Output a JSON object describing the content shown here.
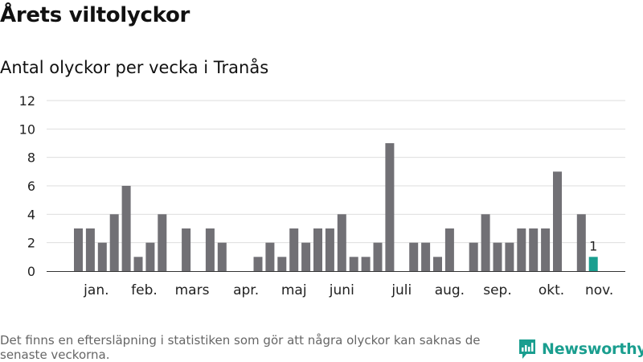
{
  "header": {
    "title": "Årets viltolyckor",
    "subtitle": "Antal olyckor per vecka i Tranås"
  },
  "footer": {
    "note": "Det finns en eftersläpning i statistiken som gör att några olyckor kan saknas de senaste veckorna.",
    "brand": "Newsworthy",
    "brand_color": "#1a9e8f"
  },
  "chart_data": {
    "type": "bar",
    "title": "Årets viltolyckor",
    "subtitle": "Antal olyckor per vecka i Tranås",
    "xlabel": "",
    "ylabel": "",
    "ylim": [
      0,
      12
    ],
    "yticks": [
      0,
      2,
      4,
      6,
      8,
      10,
      12
    ],
    "grid": true,
    "weeks": [
      1,
      2,
      3,
      4,
      5,
      6,
      7,
      8,
      9,
      10,
      11,
      12,
      13,
      14,
      15,
      16,
      17,
      18,
      19,
      20,
      21,
      22,
      23,
      24,
      25,
      26,
      27,
      28,
      29,
      30,
      31,
      32,
      33,
      34,
      35,
      36,
      37,
      38,
      39,
      40,
      41,
      42,
      43,
      44,
      45,
      46
    ],
    "values": [
      3,
      3,
      2,
      4,
      6,
      1,
      2,
      4,
      0,
      3,
      0,
      3,
      2,
      0,
      0,
      1,
      2,
      1,
      3,
      2,
      3,
      3,
      4,
      1,
      1,
      2,
      9,
      0,
      2,
      2,
      1,
      3,
      0,
      2,
      4,
      2,
      2,
      3,
      3,
      3,
      7,
      0,
      4,
      1,
      null,
      null
    ],
    "bar_color": "#717075",
    "highlight_color": "#1a9e8f",
    "highlight_week": 44,
    "data_labels": [
      {
        "week": 44,
        "label": "1"
      }
    ],
    "month_labels": [
      {
        "label": "jan.",
        "week": 2.5
      },
      {
        "label": "feb.",
        "week": 6.5
      },
      {
        "label": "mars",
        "week": 10.5
      },
      {
        "label": "apr.",
        "week": 15
      },
      {
        "label": "maj",
        "week": 19
      },
      {
        "label": "juni",
        "week": 23
      },
      {
        "label": "juli",
        "week": 28
      },
      {
        "label": "aug.",
        "week": 32
      },
      {
        "label": "sep.",
        "week": 36
      },
      {
        "label": "okt.",
        "week": 40.5
      },
      {
        "label": "nov.",
        "week": 44.5
      }
    ]
  }
}
